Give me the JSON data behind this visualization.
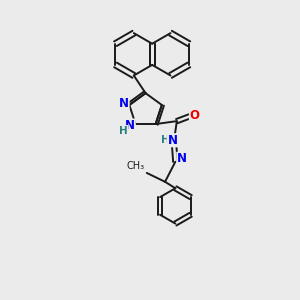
{
  "bg_color": "#ebebeb",
  "bond_color": "#1a1a1a",
  "bond_width": 1.4,
  "atom_colors": {
    "N": "#0000ee",
    "O": "#ee0000",
    "H": "#2a8080",
    "C": "#1a1a1a"
  },
  "font_size_atom": 8.5,
  "fig_size": [
    3.0,
    3.0
  ],
  "dpi": 100
}
